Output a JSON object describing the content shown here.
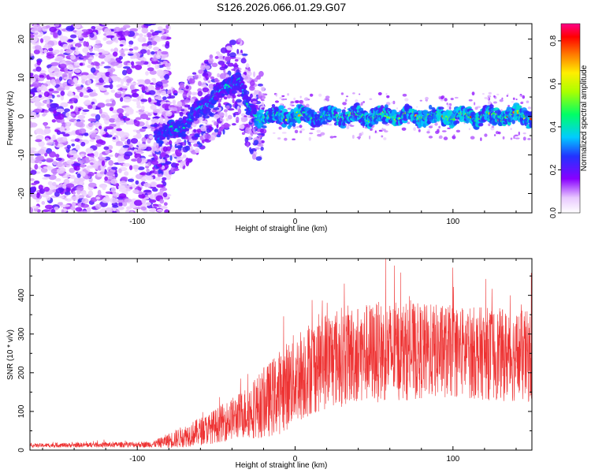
{
  "title": "S126.2026.066.01.29.G07",
  "colors": {
    "snr_line": "#ee3333",
    "axis": "#000000"
  },
  "chart_data": [
    {
      "type": "heatmap",
      "xlabel": "Height of straight line (km)",
      "ylabel": "Frequency (Hz)",
      "xlim": [
        -168,
        150
      ],
      "ylim": [
        -25,
        24
      ],
      "xticks": [
        -100,
        0,
        100
      ],
      "yticks": [
        -20,
        -10,
        0,
        10,
        20
      ],
      "xtick_labels": [
        "-100",
        "0",
        "100"
      ],
      "ytick_labels": [
        "-20",
        "-10",
        "0",
        "10",
        "20"
      ],
      "colorbar": {
        "label": "Normalized spectral amplitude",
        "range": [
          0.0,
          0.88
        ],
        "ticks": [
          0.0,
          0.2,
          0.4,
          0.6,
          0.8
        ],
        "tick_labels": [
          "0.0",
          "0.2",
          "0.4",
          "0.6",
          "0.8"
        ]
      },
      "trend": {
        "description_x": [
          -85,
          -70,
          -55,
          -45,
          -35,
          -30,
          -25,
          150
        ],
        "centroid_freq_hz": [
          -5,
          -2,
          4,
          7,
          10,
          2,
          0,
          0
        ]
      }
    },
    {
      "type": "line",
      "xlabel": "Height of straight line (km)",
      "ylabel": "SNR (10 * v/v)",
      "xlim": [
        -168,
        150
      ],
      "ylim": [
        0,
        495
      ],
      "xticks": [
        -100,
        0,
        100
      ],
      "yticks": [
        0,
        100,
        200,
        300,
        400
      ],
      "xtick_labels": [
        "-100",
        "0",
        "100"
      ],
      "ytick_labels": [
        "0",
        "100",
        "200",
        "300",
        "400"
      ],
      "series": [
        {
          "name": "SNR",
          "envelope_x": [
            -168,
            -90,
            -75,
            -55,
            -35,
            -20,
            -10,
            0,
            10,
            20,
            40,
            60,
            80,
            100,
            120,
            150
          ],
          "envelope_mean": [
            12,
            15,
            30,
            55,
            90,
            120,
            150,
            185,
            215,
            235,
            250,
            255,
            255,
            255,
            250,
            240
          ],
          "envelope_spread": [
            5,
            8,
            25,
            40,
            60,
            90,
            110,
            120,
            125,
            130,
            130,
            130,
            125,
            120,
            120,
            120
          ]
        }
      ]
    }
  ]
}
